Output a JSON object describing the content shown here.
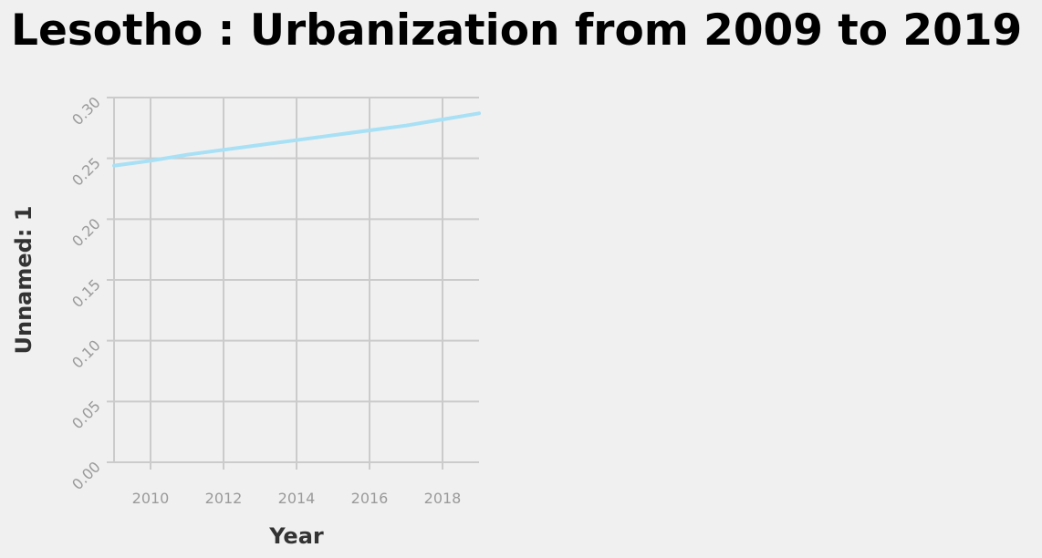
{
  "chart_data": {
    "type": "line",
    "title": "Lesotho : Urbanization from 2009 to 2019",
    "xlabel": "Year",
    "ylabel": "Unnamed: 1",
    "xlim": [
      2009,
      2019
    ],
    "ylim": [
      0,
      0.3
    ],
    "xticks": [
      2010,
      2012,
      2014,
      2016,
      2018
    ],
    "yticks": [
      "0.00",
      "0.05",
      "0.10",
      "0.15",
      "0.20",
      "0.25",
      "0.30"
    ],
    "grid": true,
    "series": [
      {
        "color": "#a8e0f5",
        "x": [
          2009,
          2010,
          2011,
          2012,
          2013,
          2014,
          2015,
          2016,
          2017,
          2018,
          2019
        ],
        "y": [
          0.244,
          0.248,
          0.253,
          0.257,
          0.261,
          0.265,
          0.269,
          0.273,
          0.277,
          0.282,
          0.287
        ]
      }
    ]
  },
  "colors": {
    "background": "#f0f0f0",
    "grid": "#cbcbcb",
    "tick_text": "#9a9a9a",
    "label_text": "#333333"
  }
}
